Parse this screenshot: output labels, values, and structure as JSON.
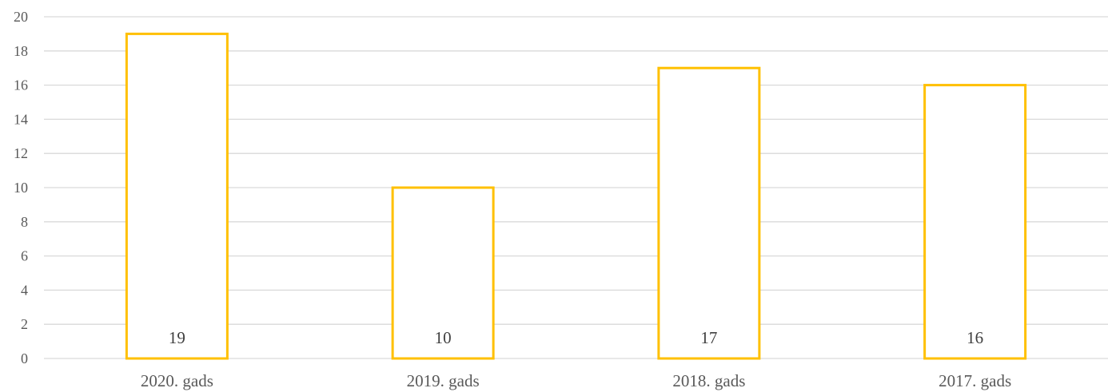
{
  "chart_data": {
    "type": "bar",
    "categories": [
      "2020. gads",
      "2019. gads",
      "2018. gads",
      "2017. gads"
    ],
    "values": [
      19,
      10,
      17,
      16
    ],
    "data_labels": [
      "19",
      "10",
      "17",
      "16"
    ],
    "yticks": [
      "0",
      "2",
      "4",
      "6",
      "8",
      "10",
      "12",
      "14",
      "16",
      "18",
      "20"
    ],
    "ylim": [
      0,
      20
    ],
    "grid": true,
    "legend": "none",
    "colors": {
      "bar_outline": "#ffc000",
      "bar_fill": "#ffffff",
      "grid": "#d9d9d9",
      "text": "#595959"
    }
  }
}
